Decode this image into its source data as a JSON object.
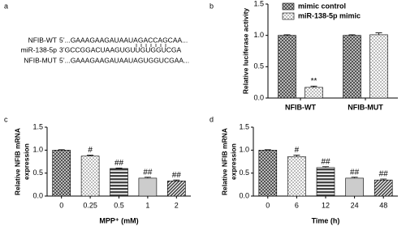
{
  "panel_a": {
    "label": "a",
    "rows": [
      {
        "name": "NFIB-WT",
        "sequence": "5’...GAAAGAAGAUAAUAGACCAGCAA..."
      },
      {
        "name": "miR-138-5p",
        "sequence": "3’GCCGGACUAAGUGUUGUGGUCGA"
      },
      {
        "name": "NFIB-MUT",
        "sequence": "5’...GAAAGAAGAUAAUAGUGGUCGAA..."
      }
    ]
  },
  "chart_data": [
    {
      "type": "bar",
      "label": "b",
      "ylabel": [
        "Relative luciferase activity"
      ],
      "categories": [
        "NFIB-WT",
        "NFIB-MUT"
      ],
      "series": [
        {
          "name": "mimic control",
          "color": "#444444",
          "pattern": "crosshatch",
          "values": [
            1.0,
            1.0
          ],
          "errors": [
            0.01,
            0.01
          ],
          "annotations": [
            null,
            null
          ]
        },
        {
          "name": "miR-138-5p mimic",
          "color": "#bbbbbb",
          "pattern": "checker",
          "values": [
            0.17,
            1.01
          ],
          "errors": [
            0.02,
            0.03
          ],
          "annotations": [
            "**",
            null
          ]
        }
      ],
      "ylim": [
        0,
        1.5
      ],
      "yticks": [
        {
          "value": 0,
          "label": "0.0"
        },
        {
          "value": 0.5,
          "label": "0.5"
        },
        {
          "value": 1,
          "label": "1.0"
        },
        {
          "value": 1.5,
          "label": "1.5"
        }
      ]
    },
    {
      "type": "bar",
      "label": "c",
      "ylabel": [
        "Relative NFIB mRNA",
        "expression"
      ],
      "xlabel": "MPP⁺ (mM)",
      "categories": [
        "0",
        "0.25",
        "0.5",
        "1",
        "2"
      ],
      "series": [
        {
          "values": [
            1.0,
            0.87,
            0.6,
            0.39,
            0.33
          ],
          "errors": [
            0.01,
            0.02,
            0.01,
            0.02,
            0.02
          ],
          "colors": [
            "#444444",
            "#bbbbbb",
            "#444444",
            "#cccccc",
            "#444444"
          ],
          "patterns": [
            "crosshatch",
            "checker",
            "hlines",
            "solid",
            "diagonal"
          ],
          "annotations": [
            null,
            "#",
            "##",
            "##",
            "##"
          ]
        }
      ],
      "ylim": [
        0,
        1.5
      ],
      "yticks": [
        {
          "value": 0,
          "label": "0.0"
        },
        {
          "value": 0.5,
          "label": "0.5"
        },
        {
          "value": 1,
          "label": "1.0"
        },
        {
          "value": 1.5,
          "label": "1.5"
        }
      ]
    },
    {
      "type": "bar",
      "label": "d",
      "ylabel": [
        "Relative NFIB mRNA",
        "expression"
      ],
      "xlabel": "Time (h)",
      "categories": [
        "0",
        "6",
        "12",
        "24",
        "48"
      ],
      "series": [
        {
          "values": [
            1.0,
            0.86,
            0.62,
            0.39,
            0.35
          ],
          "errors": [
            0.01,
            0.03,
            0.02,
            0.02,
            0.02
          ],
          "colors": [
            "#444444",
            "#bbbbbb",
            "#444444",
            "#cccccc",
            "#444444"
          ],
          "patterns": [
            "crosshatch",
            "checker",
            "hlines",
            "solid",
            "diagonal"
          ],
          "annotations": [
            null,
            "#",
            "##",
            "##",
            "##"
          ]
        }
      ],
      "ylim": [
        0,
        1.5
      ],
      "yticks": [
        {
          "value": 0,
          "label": "0.0"
        },
        {
          "value": 0.5,
          "label": "0.5"
        },
        {
          "value": 1,
          "label": "1.0"
        },
        {
          "value": 1.5,
          "label": "1.5"
        }
      ]
    }
  ]
}
